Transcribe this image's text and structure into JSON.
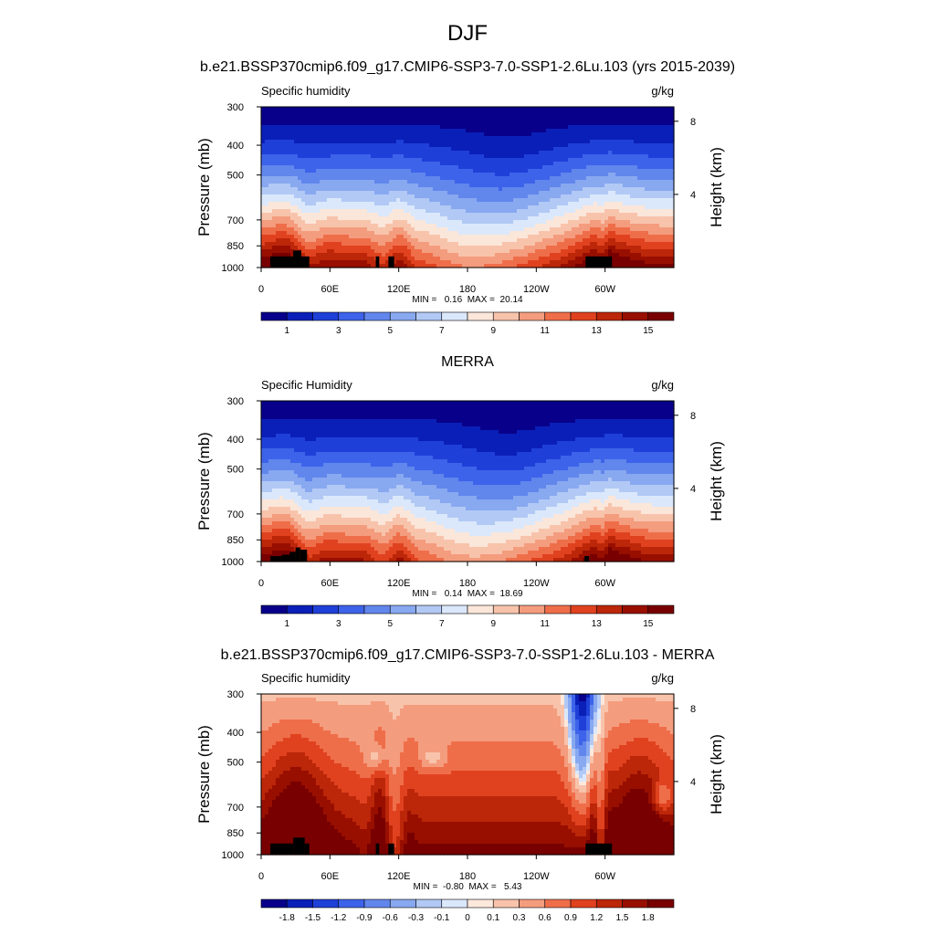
{
  "figure": {
    "season": "DJF",
    "top_title": "b.e21.BSSP370cmip6.f09_g17.CMIP6-SSP3-7.0-SSP1-2.6Lu.103 (yrs 2015-2039)",
    "middle_title": "MERRA",
    "bottom_title": "b.e21.BSSP370cmip6.f09_g17.CMIP6-SSP3-7.0-SSP1-2.6Lu.103 - MERRA"
  },
  "colors": {
    "levels_palette": [
      "#08008a",
      "#0a1fb8",
      "#1f40d8",
      "#3d63ea",
      "#6186ec",
      "#88a8f0",
      "#b2c9f5",
      "#dbe8fb",
      "#fbe6da",
      "#f8c3ab",
      "#f49c7e",
      "#ef6e4a",
      "#e0421f",
      "#bc2609",
      "#980f00",
      "#780000"
    ],
    "diff_palette": [
      "#08008a",
      "#0a1fb8",
      "#1f40d8",
      "#3d63ea",
      "#6186ec",
      "#88a8f0",
      "#b2c9f5",
      "#dbe8fb",
      "#fde9dc",
      "#f8c3ab",
      "#f49c7e",
      "#ef6e4a",
      "#e0421f",
      "#bc2609",
      "#980f00",
      "#780000"
    ],
    "terrain": "#000000"
  },
  "chart_data": [
    {
      "type": "heatmap",
      "panel": "model",
      "left_label": "Specific humidity",
      "right_label": "g/kg",
      "ylabel": "Pressure (mb)",
      "y2label": "Height (km)",
      "xticks": [
        "0",
        "60E",
        "120E",
        "180",
        "120W",
        "60W"
      ],
      "xtick_values": [
        0,
        60,
        120,
        180,
        240,
        300
      ],
      "xlim": [
        0,
        360
      ],
      "yticks": [
        "300",
        "400",
        "500",
        "700",
        "850",
        "1000"
      ],
      "ytick_values": [
        300,
        400,
        500,
        700,
        850,
        1000
      ],
      "ylim": [
        300,
        1000
      ],
      "y2ticks": [
        "8",
        "4"
      ],
      "y2tick_values": [
        8,
        4
      ],
      "stats": "MIN =   0.16  MAX =  20.14",
      "min": 0.16,
      "max": 20.14,
      "levels": [
        0,
        1,
        2,
        3,
        4,
        5,
        6,
        7,
        8,
        9,
        10,
        11,
        12,
        13,
        14,
        15
      ],
      "colorbar_labels": [
        "1",
        "3",
        "5",
        "7",
        "9",
        "11",
        "13",
        "15"
      ],
      "colorbar_label_values": [
        1,
        3,
        5,
        7,
        9,
        11,
        13,
        15
      ]
    },
    {
      "type": "heatmap",
      "panel": "obs",
      "left_label": "Specific Humidity",
      "right_label": "g/kg",
      "ylabel": "Pressure (mb)",
      "y2label": "Height (km)",
      "xticks": [
        "0",
        "60E",
        "120E",
        "180",
        "120W",
        "60W"
      ],
      "xtick_values": [
        0,
        60,
        120,
        180,
        240,
        300
      ],
      "xlim": [
        0,
        360
      ],
      "yticks": [
        "300",
        "400",
        "500",
        "700",
        "850",
        "1000"
      ],
      "ytick_values": [
        300,
        400,
        500,
        700,
        850,
        1000
      ],
      "ylim": [
        300,
        1000
      ],
      "y2ticks": [
        "8",
        "4"
      ],
      "y2tick_values": [
        8,
        4
      ],
      "stats": "MIN =   0.14  MAX =  18.69",
      "min": 0.14,
      "max": 18.69,
      "levels": [
        0,
        1,
        2,
        3,
        4,
        5,
        6,
        7,
        8,
        9,
        10,
        11,
        12,
        13,
        14,
        15
      ],
      "colorbar_labels": [
        "1",
        "3",
        "5",
        "7",
        "9",
        "11",
        "13",
        "15"
      ],
      "colorbar_label_values": [
        1,
        3,
        5,
        7,
        9,
        11,
        13,
        15
      ]
    },
    {
      "type": "heatmap",
      "panel": "diff",
      "left_label": "Specific humidity",
      "right_label": "g/kg",
      "ylabel": "Pressure (mb)",
      "y2label": "Height (km)",
      "xticks": [
        "0",
        "60E",
        "120E",
        "180",
        "120W",
        "60W"
      ],
      "xtick_values": [
        0,
        60,
        120,
        180,
        240,
        300
      ],
      "xlim": [
        0,
        360
      ],
      "yticks": [
        "300",
        "400",
        "500",
        "700",
        "850",
        "1000"
      ],
      "ytick_values": [
        300,
        400,
        500,
        700,
        850,
        1000
      ],
      "ylim": [
        300,
        1000
      ],
      "y2ticks": [
        "8",
        "4"
      ],
      "y2tick_values": [
        8,
        4
      ],
      "stats": "MIN =  -0.80  MAX =   5.43",
      "min": -0.8,
      "max": 5.43,
      "levels": [
        -1.8,
        -1.5,
        -1.2,
        -0.9,
        -0.6,
        -0.3,
        -0.1,
        0,
        0.1,
        0.3,
        0.6,
        0.9,
        1.2,
        1.5,
        1.8
      ],
      "colorbar_labels": [
        "-1.8",
        "-1.5",
        "-1.2",
        "-0.9",
        "-0.6",
        "-0.3",
        "-0.1",
        "0",
        "0.1",
        "0.3",
        "0.6",
        "0.9",
        "1.2",
        "1.5",
        "1.8"
      ],
      "colorbar_label_values": [
        -1.8,
        -1.5,
        -1.2,
        -0.9,
        -0.6,
        -0.3,
        -0.1,
        0,
        0.1,
        0.3,
        0.6,
        0.9,
        1.2,
        1.5,
        1.8
      ]
    }
  ]
}
